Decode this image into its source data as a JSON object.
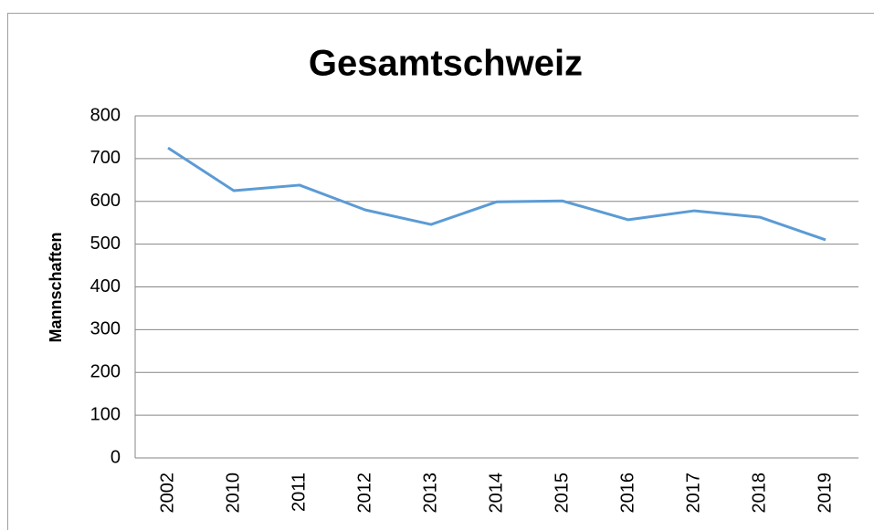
{
  "chart_data": {
    "type": "line",
    "title": "Gesamtschweiz",
    "y_label": "Mannschaften",
    "categories": [
      "2002",
      "2010",
      "2011",
      "2012",
      "2013",
      "2014",
      "2015",
      "2016",
      "2017",
      "2018",
      "2019"
    ],
    "series": [
      {
        "name": "Gesamtschweiz",
        "color": "#5b9bd5",
        "values": [
          725,
          625,
          638,
          580,
          546,
          599,
          601,
          557,
          578,
          563,
          510
        ]
      }
    ],
    "ylim": [
      0,
      800
    ],
    "yticks": [
      0,
      100,
      200,
      300,
      400,
      500,
      600,
      700,
      800
    ],
    "grid": true
  }
}
